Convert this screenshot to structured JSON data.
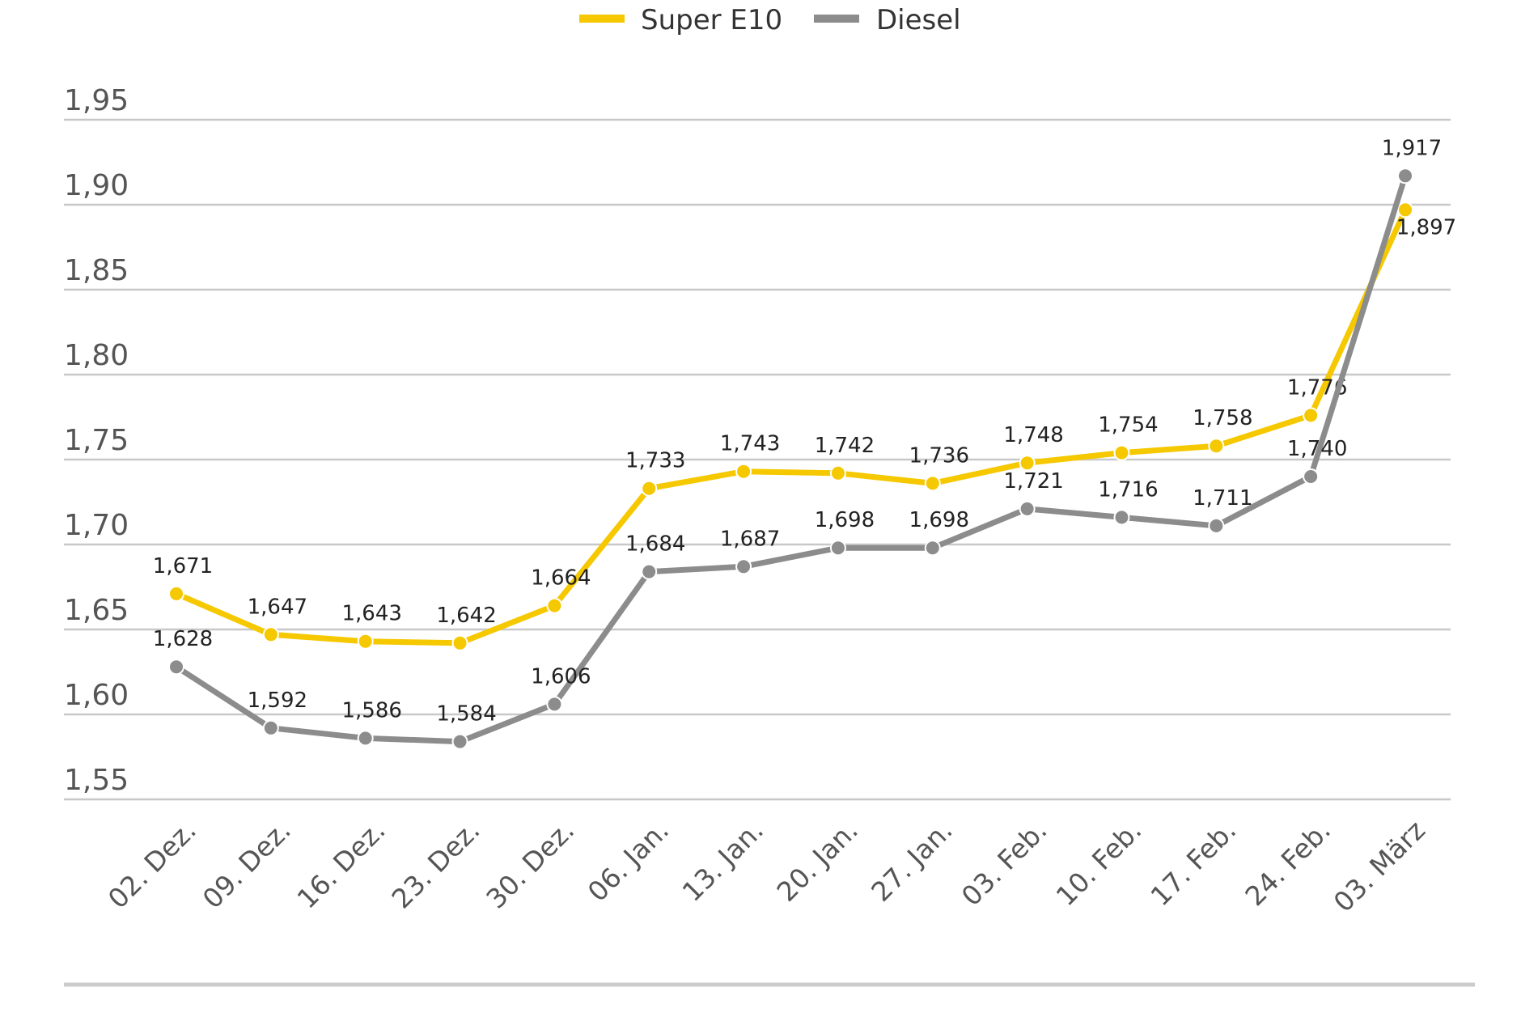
{
  "chart_data": {
    "type": "line",
    "title": "",
    "xlabel": "",
    "ylabel": "",
    "categories": [
      "02. Dez.",
      "09. Dez.",
      "16. Dez.",
      "23. Dez.",
      "30. Dez.",
      "06. Jan.",
      "13. Jan.",
      "20. Jan.",
      "27. Jan.",
      "03. Feb.",
      "10. Feb.",
      "17. Feb.",
      "24. Feb.",
      "03. März"
    ],
    "series": [
      {
        "name": "Super E10",
        "color": "#f5c800",
        "values": [
          1.671,
          1.647,
          1.643,
          1.642,
          1.664,
          1.733,
          1.743,
          1.742,
          1.736,
          1.748,
          1.754,
          1.758,
          1.776,
          1.897
        ],
        "labels": [
          "1,671",
          "1,647",
          "1,643",
          "1,642",
          "1,664",
          "1,733",
          "1,743",
          "1,742",
          "1,736",
          "1,748",
          "1,754",
          "1,758",
          "1,776",
          "1,897"
        ]
      },
      {
        "name": "Diesel",
        "color": "#8c8c8c",
        "values": [
          1.628,
          1.592,
          1.586,
          1.584,
          1.606,
          1.684,
          1.687,
          1.698,
          1.698,
          1.721,
          1.716,
          1.711,
          1.74,
          1.917
        ],
        "labels": [
          "1,628",
          "1,592",
          "1,586",
          "1,584",
          "1,606",
          "1,684",
          "1,687",
          "1,698",
          "1,698",
          "1,721",
          "1,716",
          "1,711",
          "1,740",
          "1,917"
        ]
      }
    ],
    "ylim": [
      1.55,
      1.95
    ],
    "yticks": [
      1.95,
      1.9,
      1.85,
      1.8,
      1.75,
      1.7,
      1.65,
      1.6,
      1.55
    ],
    "ytick_labels": [
      "1,95",
      "1,90",
      "1,85",
      "1,80",
      "1,75",
      "1,70",
      "1,65",
      "1,60",
      "1,55"
    ],
    "grid": "horizontal",
    "legend": "top-center"
  }
}
